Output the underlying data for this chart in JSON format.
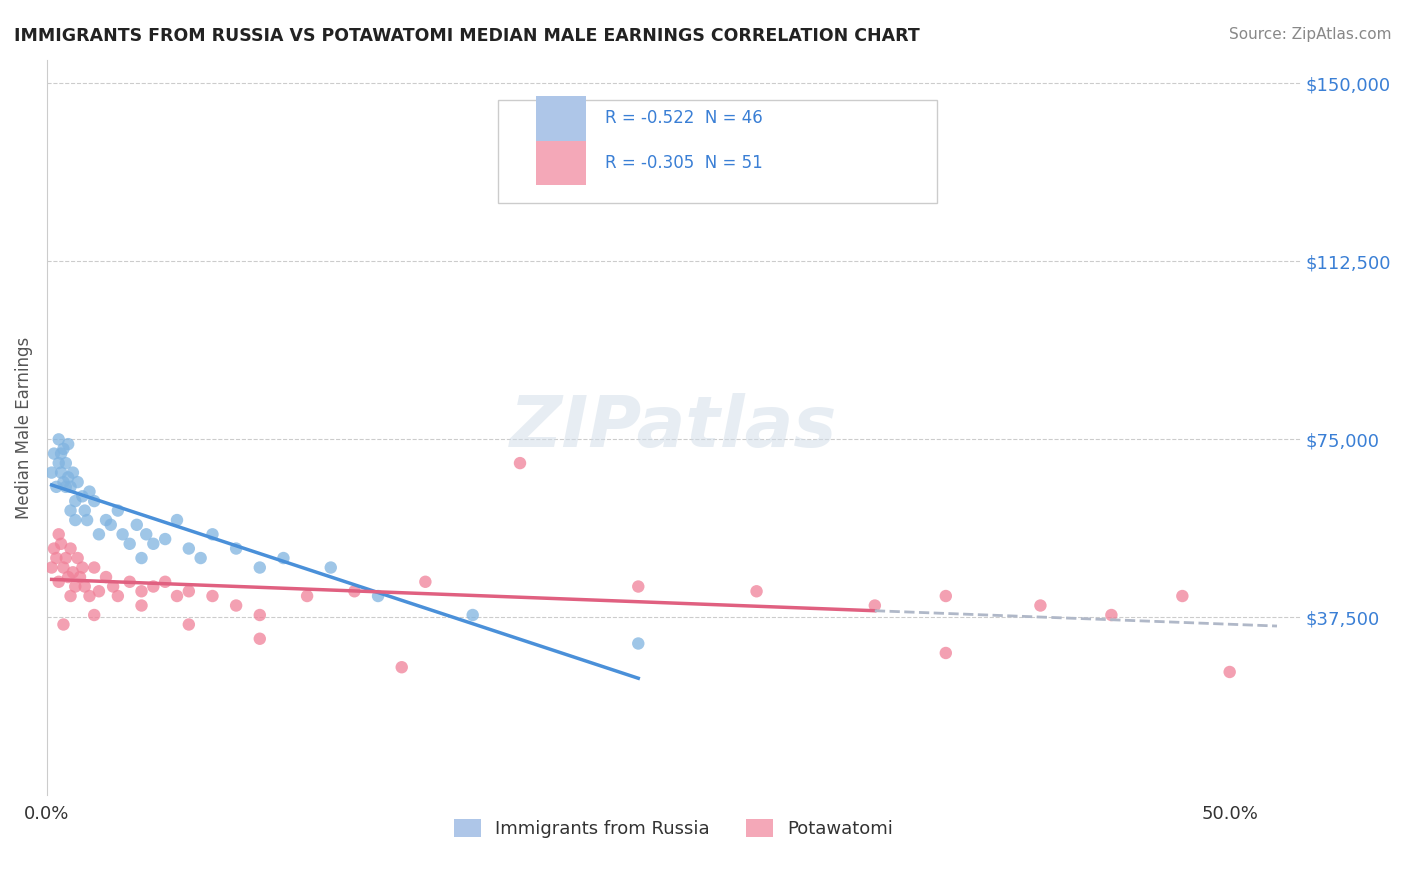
{
  "title": "IMMIGRANTS FROM RUSSIA VS POTAWATOMI MEDIAN MALE EARNINGS CORRELATION CHART",
  "source": "Source: ZipAtlas.com",
  "xlabel": "",
  "ylabel": "Median Male Earnings",
  "watermark": "ZIPatlas",
  "series1_color": "#7fb3e0",
  "series2_color": "#f08098",
  "trend1_color": "#4a90d9",
  "trend2_color": "#e06080",
  "dashed_color": "#b0b8c8",
  "yticks": [
    0,
    37500,
    75000,
    112500,
    150000
  ],
  "ytick_labels": [
    "",
    "$37,500",
    "$75,000",
    "$112,500",
    "$150,000"
  ],
  "xticks": [
    0.0,
    0.1,
    0.2,
    0.3,
    0.4,
    0.5
  ],
  "xtick_labels": [
    "0.0%",
    "",
    "",
    "",
    "",
    "50.0%"
  ],
  "xmin": 0.0,
  "xmax": 0.53,
  "ymin": 0,
  "ymax": 155000,
  "series1_x": [
    0.002,
    0.003,
    0.004,
    0.005,
    0.005,
    0.006,
    0.006,
    0.007,
    0.007,
    0.008,
    0.008,
    0.009,
    0.009,
    0.01,
    0.01,
    0.011,
    0.012,
    0.012,
    0.013,
    0.015,
    0.016,
    0.017,
    0.018,
    0.02,
    0.022,
    0.025,
    0.027,
    0.03,
    0.032,
    0.035,
    0.038,
    0.04,
    0.042,
    0.045,
    0.05,
    0.055,
    0.06,
    0.065,
    0.07,
    0.08,
    0.09,
    0.1,
    0.12,
    0.14,
    0.18,
    0.25
  ],
  "series1_y": [
    68000,
    72000,
    65000,
    75000,
    70000,
    68000,
    72000,
    66000,
    73000,
    70000,
    65000,
    67000,
    74000,
    60000,
    65000,
    68000,
    62000,
    58000,
    66000,
    63000,
    60000,
    58000,
    64000,
    62000,
    55000,
    58000,
    57000,
    60000,
    55000,
    53000,
    57000,
    50000,
    55000,
    53000,
    54000,
    58000,
    52000,
    50000,
    55000,
    52000,
    48000,
    50000,
    48000,
    42000,
    38000,
    32000
  ],
  "series2_x": [
    0.002,
    0.003,
    0.004,
    0.005,
    0.005,
    0.006,
    0.007,
    0.008,
    0.009,
    0.01,
    0.011,
    0.012,
    0.013,
    0.014,
    0.015,
    0.016,
    0.018,
    0.02,
    0.022,
    0.025,
    0.028,
    0.03,
    0.035,
    0.04,
    0.045,
    0.05,
    0.055,
    0.06,
    0.07,
    0.08,
    0.09,
    0.11,
    0.13,
    0.16,
    0.2,
    0.25,
    0.3,
    0.35,
    0.38,
    0.42,
    0.45,
    0.48,
    0.5,
    0.38,
    0.15,
    0.09,
    0.06,
    0.04,
    0.02,
    0.01,
    0.007
  ],
  "series2_y": [
    48000,
    52000,
    50000,
    55000,
    45000,
    53000,
    48000,
    50000,
    46000,
    52000,
    47000,
    44000,
    50000,
    46000,
    48000,
    44000,
    42000,
    48000,
    43000,
    46000,
    44000,
    42000,
    45000,
    43000,
    44000,
    45000,
    42000,
    43000,
    42000,
    40000,
    38000,
    42000,
    43000,
    45000,
    70000,
    44000,
    43000,
    40000,
    42000,
    40000,
    38000,
    42000,
    26000,
    30000,
    27000,
    33000,
    36000,
    40000,
    38000,
    42000,
    36000
  ]
}
